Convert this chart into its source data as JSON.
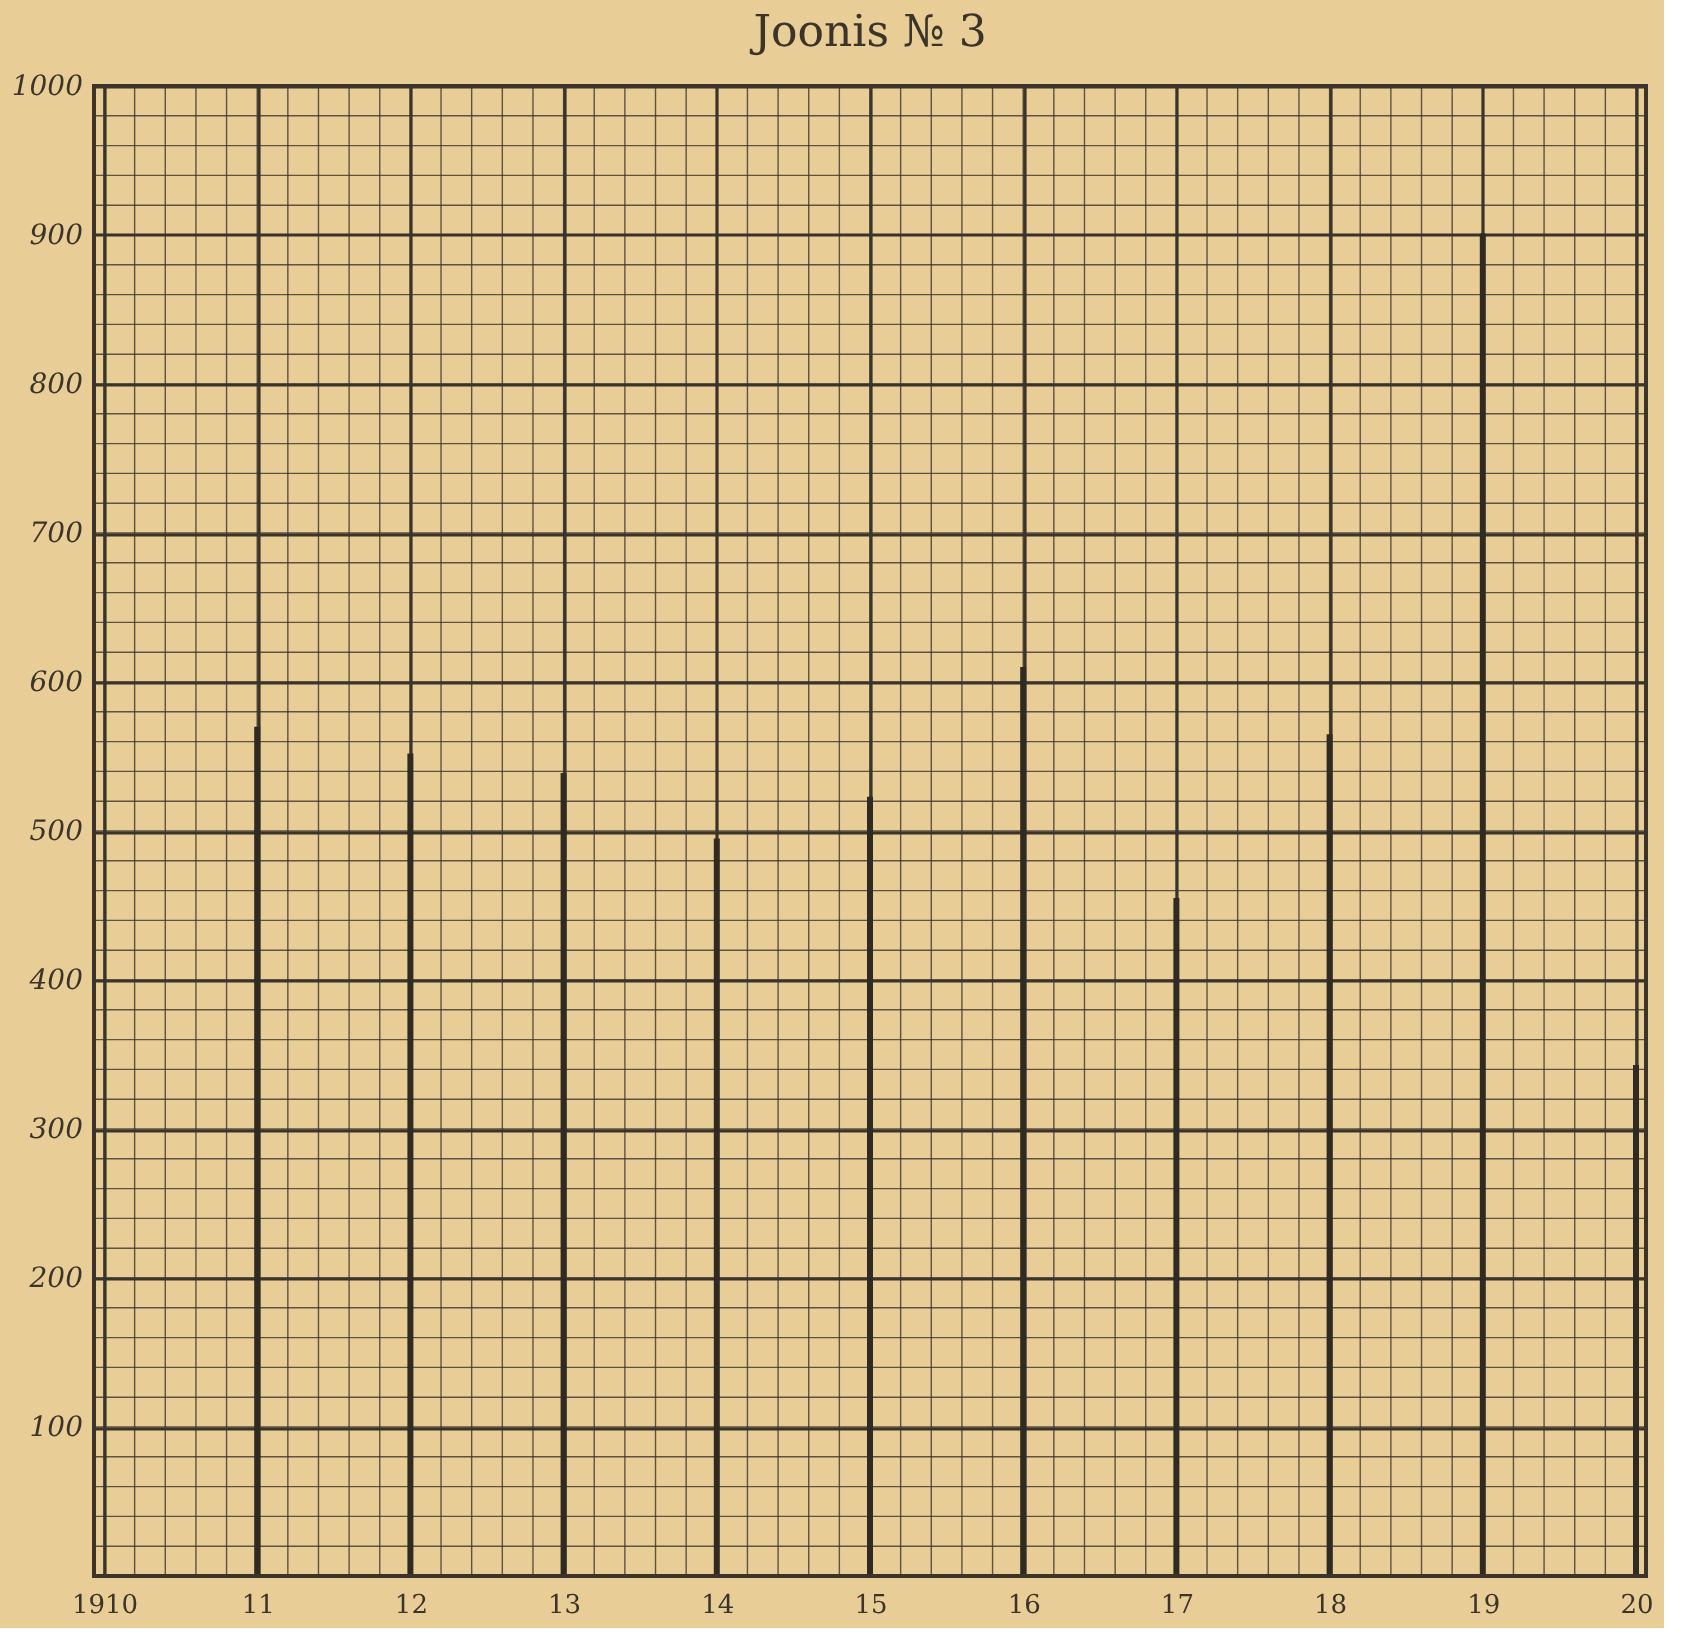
{
  "chart_data": {
    "type": "bar",
    "title": "Joonis № 3",
    "x": [
      1911,
      1912,
      1913,
      1914,
      1915,
      1916,
      1917,
      1918,
      1919,
      1920
    ],
    "values": [
      570,
      552,
      539,
      495,
      523,
      610,
      455,
      565,
      901,
      343
    ],
    "color": "#2f2a22",
    "xlim": [
      1910,
      1920
    ],
    "xticks": [
      1910,
      {
        "value": 1911,
        "label": "11"
      },
      {
        "value": 1912,
        "label": "12"
      },
      {
        "value": 1913,
        "label": "13"
      },
      {
        "value": 1914,
        "label": "14"
      },
      {
        "value": 1915,
        "label": "15"
      },
      {
        "value": 1916,
        "label": "16"
      },
      {
        "value": 1917,
        "label": "17"
      },
      {
        "value": 1918,
        "label": "18"
      },
      {
        "value": 1919,
        "label": "19"
      },
      {
        "value": 1920,
        "label": "20"
      }
    ],
    "ylim": [
      0,
      1000
    ],
    "yticks": [
      100,
      200,
      300,
      400,
      500,
      600,
      700,
      800,
      900,
      1000
    ],
    "grid": true
  }
}
